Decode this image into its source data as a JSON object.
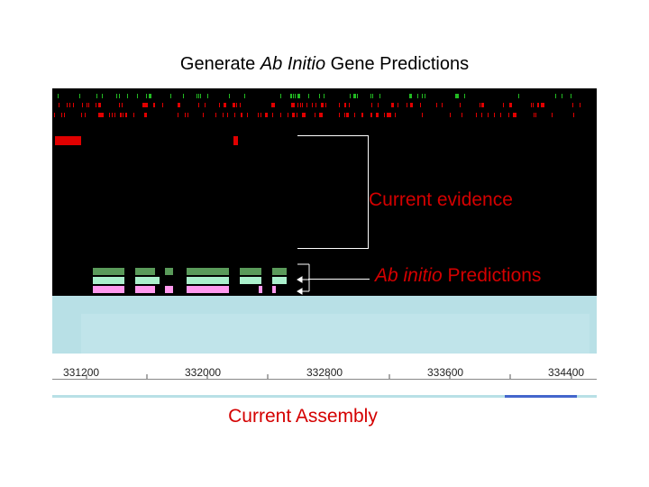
{
  "slide": {
    "title_prefix": "Generate ",
    "title_italic": "Ab Initio",
    "title_suffix": " Gene Predictions"
  },
  "annotations": {
    "evidence_label": "Current evidence",
    "predictions_italic": "Ab initio",
    "predictions_suffix": " Predictions",
    "assembly_label": "Current Assembly"
  },
  "ruler": {
    "ticks": [
      "331200",
      "332000",
      "332800",
      "333600",
      "334400"
    ]
  },
  "colors": {
    "evidence_red": "#e00000",
    "evidence_green": "#22bb22",
    "prediction_dark_green": "#5a9a5a",
    "prediction_light_green": "#aaf0cc",
    "prediction_pink": "#ff99ee",
    "label_red": "#d40000",
    "panel_light_blue": "#b8e0e6"
  }
}
